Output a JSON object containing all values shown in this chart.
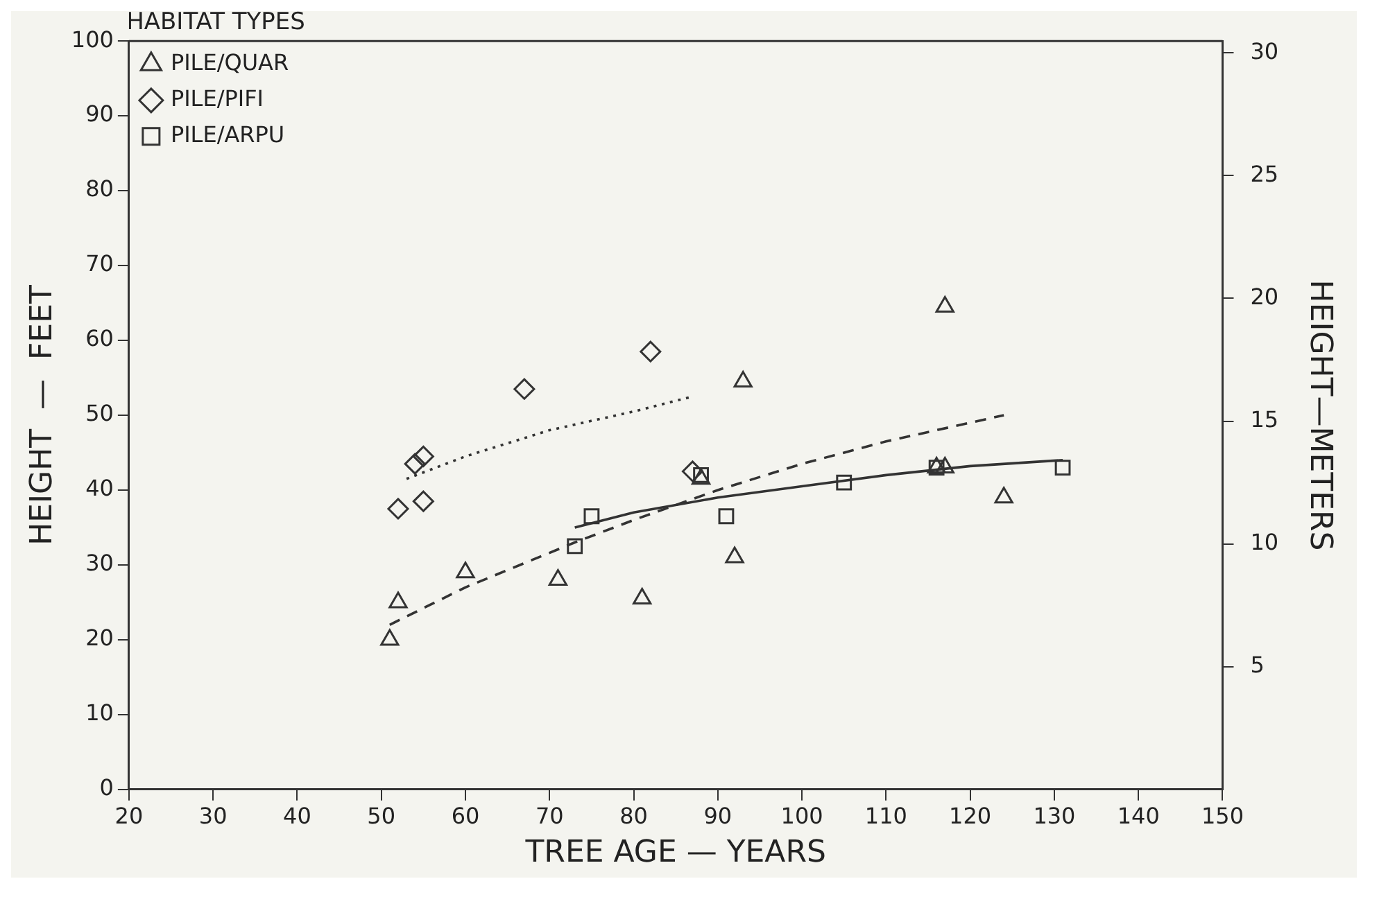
{
  "chart_data": {
    "type": "scatter",
    "xlabel": "TREE AGE — YEARS",
    "ylabel": "HEIGHT  —  FEET",
    "y2label": "HEIGHT—METERS",
    "legend_title": "HABITAT TYPES",
    "legend": "top left",
    "grid": false,
    "xlim": [
      20,
      150
    ],
    "xticks": [
      20,
      30,
      40,
      50,
      60,
      70,
      80,
      90,
      100,
      110,
      120,
      130,
      140,
      150
    ],
    "ylim": [
      0,
      100
    ],
    "yticks": [
      0,
      10,
      20,
      30,
      40,
      50,
      60,
      70,
      80,
      90,
      100
    ],
    "y2lim": [
      0,
      30.48
    ],
    "y2ticks": [
      5,
      10,
      15,
      20,
      25,
      30
    ],
    "series": [
      {
        "name": "PILE/QUAR",
        "marker": "triangle",
        "line_style": "dashed",
        "color": "#333333",
        "x": [
          51,
          52,
          60,
          71,
          81,
          88,
          92,
          93,
          116,
          117,
          117,
          124
        ],
        "values": [
          20,
          25,
          29,
          28,
          25.5,
          41.5,
          31,
          54.5,
          43,
          64.5,
          43,
          39
        ]
      },
      {
        "name": "PILE/PIFI",
        "marker": "diamond",
        "line_style": "dotted",
        "color": "#333333",
        "x": [
          52,
          54,
          55,
          55,
          67,
          82,
          87
        ],
        "values": [
          37.5,
          43.5,
          44.5,
          38.5,
          53.5,
          58.5,
          42.5
        ]
      },
      {
        "name": "PILE/ARPU",
        "marker": "square",
        "line_style": "solid",
        "color": "#333333",
        "x": [
          73,
          75,
          88,
          91,
          105,
          116,
          131
        ],
        "values": [
          32.5,
          36.5,
          42,
          36.5,
          41,
          43,
          43
        ]
      },
      {
        "type": "line",
        "marker": "none",
        "line_style": "dashed",
        "color": "#333333",
        "x": [
          51,
          60,
          73,
          80,
          90,
          100,
          110,
          124
        ],
        "values": [
          22,
          27,
          33,
          36,
          40,
          43.5,
          46.5,
          50
        ]
      },
      {
        "type": "line",
        "marker": "none",
        "line_style": "dotted",
        "color": "#333333",
        "x": [
          53,
          60,
          70,
          80,
          87
        ],
        "values": [
          41.5,
          44.5,
          48,
          50.5,
          52.5
        ]
      },
      {
        "type": "line",
        "marker": "none",
        "line_style": "solid",
        "color": "#333333",
        "x": [
          73,
          80,
          90,
          100,
          110,
          120,
          131
        ],
        "values": [
          35,
          37,
          39,
          40.5,
          42,
          43.2,
          44
        ]
      }
    ]
  }
}
